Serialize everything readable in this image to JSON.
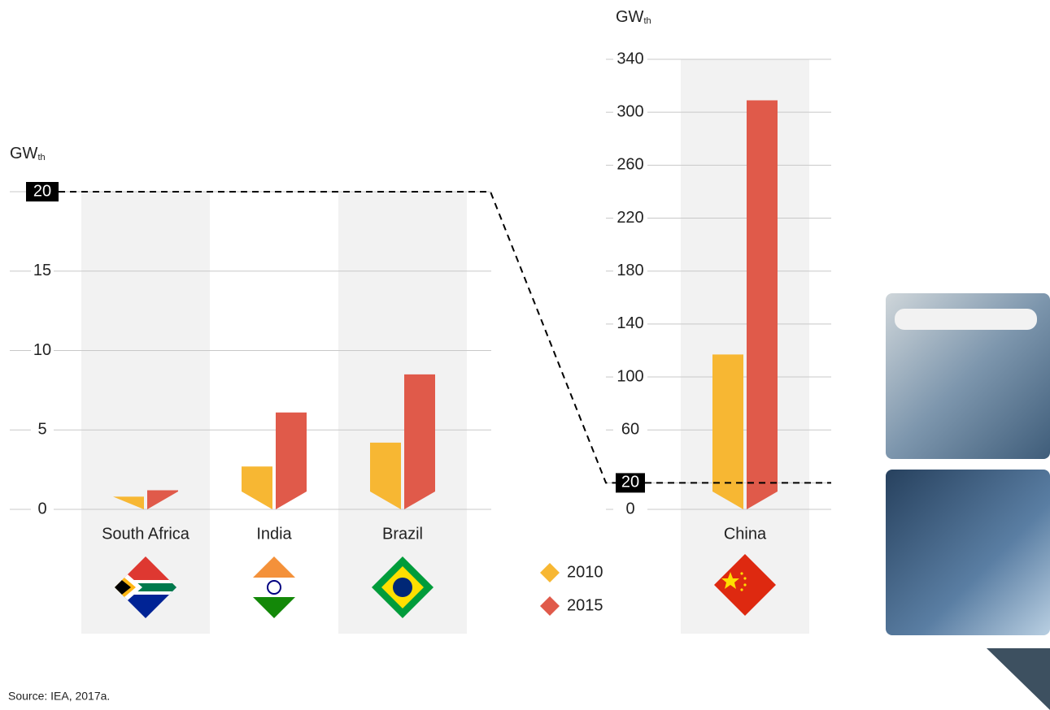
{
  "chart_data": [
    {
      "type": "bar",
      "y_label": {
        "main": "GW",
        "sub": "th"
      },
      "categories": [
        "South Africa",
        "India",
        "Brazil"
      ],
      "series": [
        {
          "name": "2010",
          "color": "#f7b733",
          "values": [
            0.8,
            2.7,
            4.2
          ]
        },
        {
          "name": "2015",
          "color": "#e05a4a",
          "values": [
            1.2,
            6.1,
            8.5
          ]
        }
      ],
      "ylim": [
        0,
        20
      ],
      "yticks": [
        0,
        5,
        10,
        15,
        20
      ],
      "grid": true
    },
    {
      "type": "bar",
      "y_label": {
        "main": "GW",
        "sub": "th"
      },
      "categories": [
        "China"
      ],
      "series": [
        {
          "name": "2010",
          "color": "#f7b733",
          "values": [
            117
          ]
        },
        {
          "name": "2015",
          "color": "#e05a4a",
          "values": [
            309
          ]
        }
      ],
      "ylim": [
        0,
        340
      ],
      "yticks": [
        0,
        20,
        60,
        100,
        140,
        180,
        220,
        260,
        300,
        340
      ],
      "grid": true
    }
  ],
  "source": "Source: IEA, 2017a."
}
